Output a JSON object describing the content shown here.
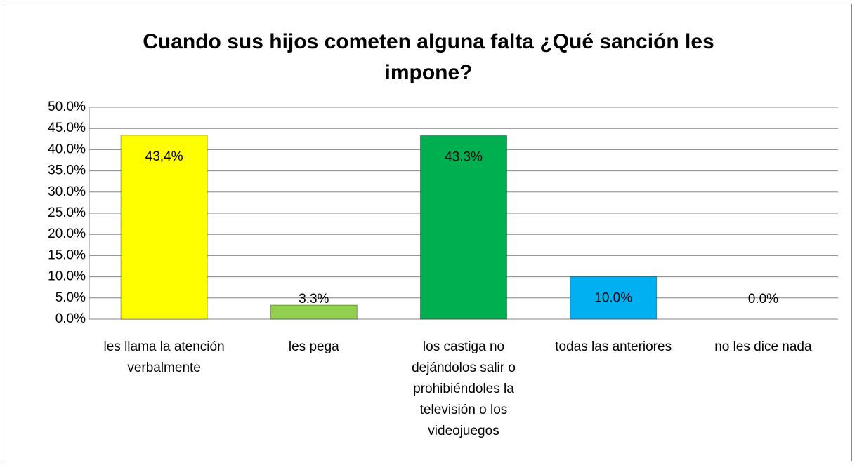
{
  "chart_data": {
    "type": "bar",
    "title": "Cuando sus hijos cometen alguna falta ¿Qué sanción les impone?",
    "categories": [
      "les llama la atención verbalmente",
      "les pega",
      "los castiga no dejándolos salir o prohibiéndoles la televisión o los videojuegos",
      "todas las anteriores",
      "no les dice nada"
    ],
    "values": [
      43.4,
      3.3,
      43.3,
      10.0,
      0.0
    ],
    "value_labels": [
      "43,4%",
      "3.3%",
      "43.3%",
      "10.0%",
      "0.0%"
    ],
    "colors": [
      "#ffff00",
      "#92d050",
      "#00b050",
      "#00b0f0",
      "#4f81bd"
    ],
    "ylim": [
      0,
      50
    ],
    "yticks": [
      {
        "value": 0,
        "label": "0.0%"
      },
      {
        "value": 5,
        "label": "5.0%"
      },
      {
        "value": 10,
        "label": "10.0%"
      },
      {
        "value": 15,
        "label": "15.0%"
      },
      {
        "value": 20,
        "label": "20.0%"
      },
      {
        "value": 25,
        "label": "25.0%"
      },
      {
        "value": 30,
        "label": "30.0%"
      },
      {
        "value": 35,
        "label": "35.0%"
      },
      {
        "value": 40,
        "label": "40.0%"
      },
      {
        "value": 45,
        "label": "45.0%"
      },
      {
        "value": 50,
        "label": "50.0%"
      }
    ],
    "grid": true
  }
}
